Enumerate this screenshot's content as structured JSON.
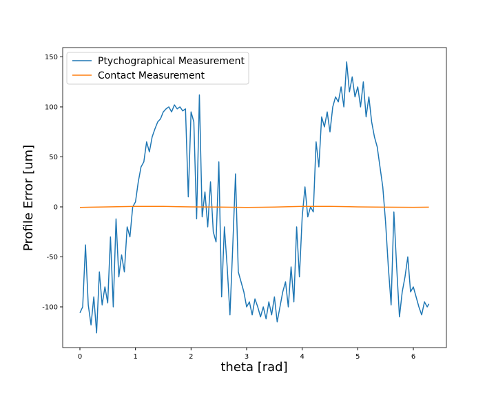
{
  "chart_data": {
    "type": "line",
    "xlabel": "theta [rad]",
    "ylabel": "Profile Error [um]",
    "xlim": [
      -0.31,
      6.595
    ],
    "ylim": [
      -140.7,
      159.3
    ],
    "xticks": [
      0,
      1,
      2,
      3,
      4,
      5,
      6
    ],
    "yticks": [
      -100,
      -50,
      0,
      50,
      100,
      150
    ],
    "legend": "upper left",
    "series": [
      {
        "name": "Ptychographical Measurement",
        "color": "#1f77b4",
        "x": [
          0,
          0.05,
          0.1,
          0.15,
          0.2,
          0.25,
          0.3,
          0.35,
          0.4,
          0.45,
          0.5,
          0.55,
          0.6,
          0.65,
          0.7,
          0.75,
          0.8,
          0.85,
          0.9,
          0.95,
          1,
          1.05,
          1.1,
          1.15,
          1.2,
          1.25,
          1.3,
          1.35,
          1.4,
          1.45,
          1.5,
          1.55,
          1.6,
          1.65,
          1.7,
          1.75,
          1.8,
          1.85,
          1.9,
          1.95,
          2,
          2.05,
          2.1,
          2.15,
          2.2,
          2.25,
          2.3,
          2.35,
          2.4,
          2.45,
          2.5,
          2.55,
          2.6,
          2.65,
          2.7,
          2.75,
          2.8,
          2.85,
          2.9,
          2.95,
          3,
          3.05,
          3.1,
          3.15,
          3.2,
          3.25,
          3.3,
          3.35,
          3.4,
          3.45,
          3.5,
          3.55,
          3.6,
          3.65,
          3.7,
          3.75,
          3.8,
          3.85,
          3.9,
          3.95,
          4,
          4.05,
          4.1,
          4.15,
          4.2,
          4.25,
          4.3,
          4.35,
          4.4,
          4.45,
          4.5,
          4.55,
          4.6,
          4.65,
          4.7,
          4.75,
          4.8,
          4.85,
          4.9,
          4.95,
          5,
          5.05,
          5.1,
          5.15,
          5.2,
          5.25,
          5.3,
          5.35,
          5.4,
          5.45,
          5.5,
          5.55,
          5.6,
          5.65,
          5.7,
          5.75,
          5.8,
          5.85,
          5.9,
          5.95,
          6,
          6.05,
          6.1,
          6.15,
          6.2,
          6.25,
          6.28
        ],
        "values": [
          -106,
          -100,
          -38,
          -98,
          -118,
          -90,
          -126,
          -65,
          -98,
          -80,
          -96,
          -30,
          -100,
          -12,
          -70,
          -48,
          -65,
          -20,
          -30,
          0,
          5,
          25,
          40,
          45,
          65,
          55,
          70,
          78,
          85,
          88,
          95,
          98,
          100,
          95,
          102,
          98,
          100,
          96,
          98,
          10,
          95,
          85,
          -12,
          112,
          -10,
          15,
          -20,
          25,
          -25,
          -35,
          45,
          -90,
          -20,
          -60,
          -108,
          -40,
          33,
          -65,
          -75,
          -85,
          -100,
          -95,
          -108,
          -92,
          -100,
          -110,
          -100,
          -112,
          -95,
          -108,
          -90,
          -115,
          -100,
          -85,
          -75,
          -100,
          -60,
          -95,
          -20,
          -70,
          -10,
          20,
          -10,
          0,
          -5,
          65,
          40,
          90,
          80,
          95,
          75,
          100,
          110,
          105,
          120,
          100,
          145,
          115,
          130,
          110,
          120,
          100,
          125,
          90,
          110,
          85,
          70,
          60,
          40,
          20,
          -15,
          -60,
          -98,
          -5,
          -60,
          -110,
          -85,
          -70,
          -50,
          -85,
          -80,
          -90,
          -100,
          -108,
          -95,
          -100,
          -97
        ]
      },
      {
        "name": "Contact Measurement",
        "color": "#ff7f0e",
        "x": [
          0,
          0.5,
          1,
          1.5,
          2,
          2.5,
          3,
          3.5,
          4,
          4.5,
          5,
          5.5,
          6,
          6.28
        ],
        "values": [
          -0.5,
          0,
          0.5,
          0.5,
          0,
          -0.2,
          -0.5,
          -0.2,
          0.5,
          0.5,
          0,
          -0.3,
          -0.4,
          -0.3
        ]
      }
    ]
  }
}
